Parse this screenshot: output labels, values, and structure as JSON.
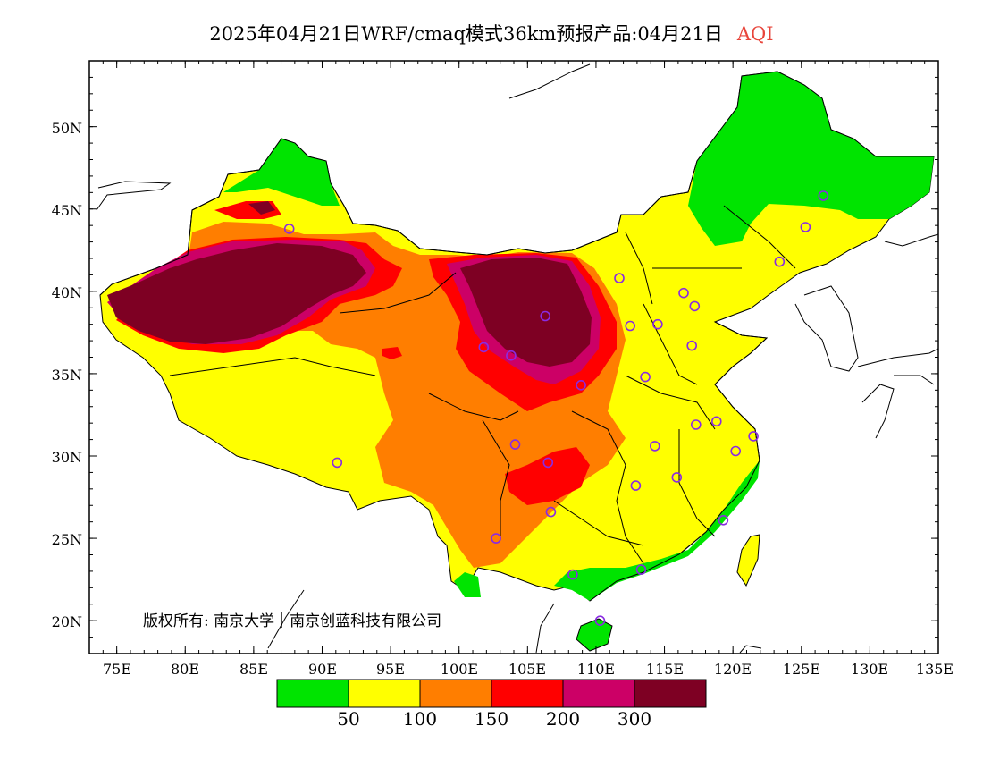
{
  "title": {
    "main": "2025年04月21日WRF/cmaq模式36km预报产品:04月21日",
    "pollutant": "AQI",
    "pollutant_color": "#e8443a"
  },
  "axes": {
    "lon_ticks": [
      "75E",
      "80E",
      "85E",
      "90E",
      "95E",
      "100E",
      "105E",
      "110E",
      "115E",
      "120E",
      "125E",
      "130E",
      "135E"
    ],
    "lat_ticks": [
      "50N",
      "45N",
      "40N",
      "35N",
      "30N",
      "25N",
      "20N"
    ]
  },
  "copyright": "版权所有: 南京大学｜南京创蓝科技有限公司",
  "legend": {
    "colors": [
      "#00e400",
      "#ffff00",
      "#ff7e00",
      "#ff0000",
      "#cc0066",
      "#7e0023"
    ],
    "thresholds": [
      "50",
      "100",
      "150",
      "200",
      "300"
    ]
  },
  "chart_data": {
    "type": "heatmap",
    "title": "2025年04月21日WRF/cmaq模式36km预报产品:04月21日 AQI",
    "xlabel": "",
    "ylabel": "",
    "x_range": [
      73,
      135
    ],
    "y_range": [
      18,
      54
    ],
    "color_scale": [
      {
        "max": 50,
        "color": "#00e400"
      },
      {
        "max": 100,
        "color": "#ffff00"
      },
      {
        "max": 150,
        "color": "#ff7e00"
      },
      {
        "max": 200,
        "color": "#ff0000"
      },
      {
        "max": 300,
        "color": "#cc0066"
      },
      {
        "max": null,
        "color": "#7e0023"
      }
    ],
    "stations": [
      [
        87.6,
        43.8
      ],
      [
        101.8,
        36.6
      ],
      [
        103.8,
        36.1
      ],
      [
        106.3,
        38.5
      ],
      [
        108.9,
        34.3
      ],
      [
        104.1,
        30.7
      ],
      [
        106.5,
        29.6
      ],
      [
        106.7,
        26.6
      ],
      [
        102.7,
        25.0
      ],
      [
        108.3,
        22.8
      ],
      [
        110.3,
        20.0
      ],
      [
        113.3,
        23.1
      ],
      [
        112.9,
        28.2
      ],
      [
        114.3,
        30.6
      ],
      [
        115.9,
        28.7
      ],
      [
        117.3,
        31.9
      ],
      [
        118.8,
        32.1
      ],
      [
        120.2,
        30.3
      ],
      [
        121.5,
        31.2
      ],
      [
        119.3,
        26.1
      ],
      [
        113.6,
        34.8
      ],
      [
        117.0,
        36.7
      ],
      [
        114.5,
        38.0
      ],
      [
        112.5,
        37.9
      ],
      [
        111.7,
        40.8
      ],
      [
        116.4,
        39.9
      ],
      [
        117.2,
        39.1
      ],
      [
        123.4,
        41.8
      ],
      [
        125.3,
        43.9
      ],
      [
        126.6,
        45.8
      ],
      [
        91.1,
        29.6
      ]
    ]
  }
}
